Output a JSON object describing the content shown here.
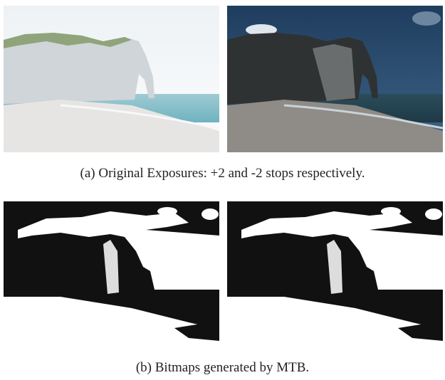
{
  "figure": {
    "subfigures": [
      {
        "caption": "(a) Original Exposures: +2 and -2 stops respectively."
      },
      {
        "caption": "(b) Bitmaps generated by MTB."
      }
    ]
  }
}
